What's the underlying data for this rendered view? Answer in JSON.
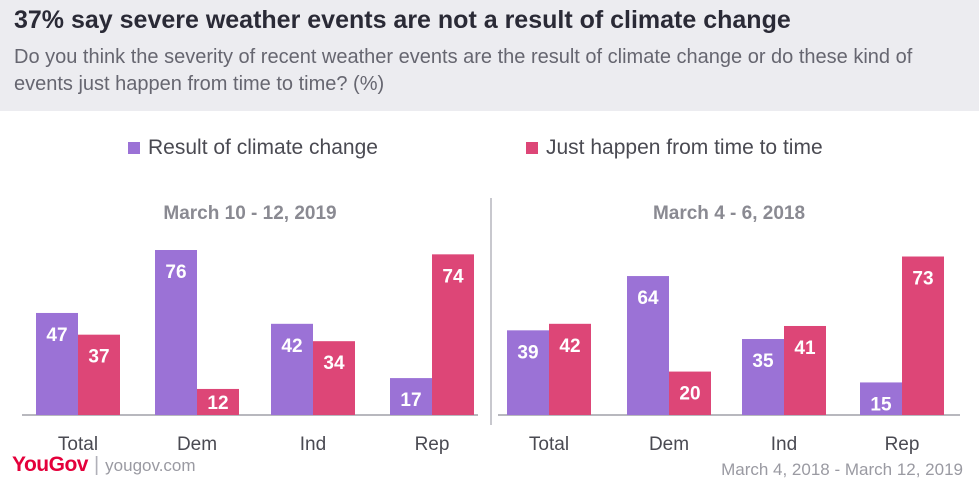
{
  "header": {
    "title": "37% say severe weather events are not a result of climate change",
    "subtitle": "Do you think the severity of recent weather events are the result of climate change or do these kind of events just happen from time to time? (%)"
  },
  "footer": {
    "logo": "YouGov",
    "url": "yougov.com",
    "date_range": "March 4, 2018 - March 12, 2019"
  },
  "colors": {
    "climate": "#9b72d6",
    "time": "#dd4677"
  },
  "chart_data": [
    {
      "type": "bar",
      "title": "March 10 - 12, 2019",
      "categories": [
        "Total",
        "Dem",
        "Ind",
        "Rep"
      ],
      "series": [
        {
          "name": "Result of climate change",
          "values": [
            47,
            76,
            42,
            17
          ]
        },
        {
          "name": "Just happen from time to time",
          "values": [
            37,
            12,
            34,
            74
          ]
        }
      ],
      "ylim": [
        0,
        76
      ],
      "legend": "top"
    },
    {
      "type": "bar",
      "title": "March 4 - 6, 2018",
      "categories": [
        "Total",
        "Dem",
        "Ind",
        "Rep"
      ],
      "series": [
        {
          "name": "Result of climate change",
          "values": [
            39,
            64,
            35,
            15
          ]
        },
        {
          "name": "Just happen from time to time",
          "values": [
            42,
            20,
            41,
            73
          ]
        }
      ],
      "ylim": [
        0,
        76
      ],
      "legend": "top"
    }
  ]
}
